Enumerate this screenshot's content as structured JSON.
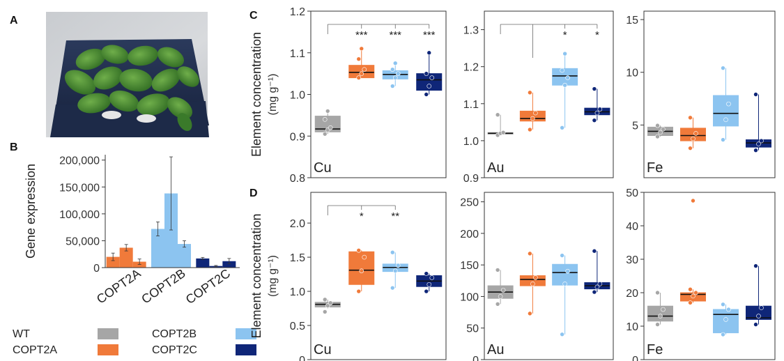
{
  "panel_labels": {
    "A": "A",
    "B": "B",
    "C": "C",
    "D": "D"
  },
  "colors": {
    "WT": "#a6a6a6",
    "COPT2A": "#f07a3a",
    "COPT2B": "#8cc4f0",
    "COPT2C": "#0f2678"
  },
  "legend": {
    "items": [
      {
        "label": "WT",
        "color": "#a6a6a6"
      },
      {
        "label": "COPT2A",
        "color": "#f07a3a"
      },
      {
        "label": "COPT2B",
        "color": "#8cc4f0"
      },
      {
        "label": "COPT2C",
        "color": "#0f2678"
      }
    ]
  },
  "chart_data": [
    {
      "id": "B",
      "type": "bar",
      "ylabel": "Gene expression",
      "ylim": [
        0,
        210000
      ],
      "yticks": [
        0,
        50000,
        100000,
        150000,
        200000
      ],
      "ytick_labels": [
        "0",
        "50,000",
        "100,000",
        "150,000",
        "200,000"
      ],
      "categories": [
        "COPT2A",
        "COPT2B",
        "COPT2C"
      ],
      "groups": [
        {
          "category": "COPT2A",
          "color": "#f07a3a",
          "values": [
            20000,
            37000,
            11000
          ],
          "errors": [
            7000,
            6000,
            5000
          ]
        },
        {
          "category": "COPT2B",
          "color": "#8cc4f0",
          "values": [
            72000,
            138000,
            44000
          ],
          "errors": [
            13000,
            68000,
            6000
          ]
        },
        {
          "category": "COPT2C",
          "color": "#0f2678",
          "values": [
            17000,
            3000,
            12000
          ],
          "errors": [
            2000,
            1000,
            5000
          ]
        }
      ]
    },
    {
      "id": "C-Cu",
      "type": "box",
      "element": "Cu",
      "ylabel": "Element concentration",
      "yunit": "(mg g⁻¹)",
      "ylim": [
        0.8,
        1.2
      ],
      "yticks": [
        0.8,
        0.9,
        1.0,
        1.1,
        1.2
      ],
      "ytick_labels": [
        "0.8",
        "0.9",
        "1.0",
        "1.1",
        "1.2"
      ],
      "significance": [
        "",
        "***",
        "***",
        "***"
      ],
      "bracket": true,
      "boxes": [
        {
          "genotype": "WT",
          "q1": 0.91,
          "median": 0.917,
          "q3": 0.948,
          "whislo": 0.905,
          "whishi": 0.96,
          "points": [
            0.905,
            0.915,
            0.92,
            0.94,
            0.96
          ]
        },
        {
          "genotype": "COPT2A",
          "q1": 1.04,
          "median": 1.053,
          "q3": 1.07,
          "whislo": 1.04,
          "whishi": 1.11,
          "points": [
            1.04,
            1.05,
            1.06,
            1.085,
            1.11
          ]
        },
        {
          "genotype": "COPT2B",
          "q1": 1.037,
          "median": 1.048,
          "q3": 1.057,
          "whislo": 1.02,
          "whishi": 1.075,
          "points": [
            1.02,
            1.04,
            1.05,
            1.06,
            1.075
          ]
        },
        {
          "genotype": "COPT2C",
          "q1": 1.01,
          "median": 1.035,
          "q3": 1.05,
          "whislo": 1.0,
          "whishi": 1.1,
          "points": [
            1.0,
            1.02,
            1.04,
            1.05,
            1.1
          ]
        }
      ]
    },
    {
      "id": "C-Au",
      "type": "box",
      "element": "Au",
      "ylim": [
        0.9,
        1.35
      ],
      "yticks": [
        0.9,
        1.0,
        1.1,
        1.2,
        1.3
      ],
      "ytick_labels": [
        "0.9",
        "1.0",
        "1.1",
        "1.2",
        "1.3"
      ],
      "significance": [
        "",
        "",
        "*",
        "*"
      ],
      "bracket": true,
      "boxes": [
        {
          "genotype": "WT",
          "q1": 1.018,
          "median": 1.02,
          "q3": 1.022,
          "whislo": 1.015,
          "whishi": 1.07,
          "points": [
            1.015,
            1.02,
            1.022,
            1.07
          ]
        },
        {
          "genotype": "COPT2A",
          "q1": 1.053,
          "median": 1.06,
          "q3": 1.08,
          "whislo": 1.03,
          "whishi": 1.13,
          "points": [
            1.03,
            1.06,
            1.075,
            1.13
          ]
        },
        {
          "genotype": "COPT2B",
          "q1": 1.15,
          "median": 1.175,
          "q3": 1.195,
          "whislo": 1.035,
          "whishi": 1.235,
          "points": [
            1.035,
            1.15,
            1.17,
            1.19,
            1.235
          ]
        },
        {
          "genotype": "COPT2C",
          "q1": 1.07,
          "median": 1.078,
          "q3": 1.088,
          "whislo": 1.055,
          "whishi": 1.14,
          "points": [
            1.055,
            1.075,
            1.085,
            1.14
          ]
        }
      ]
    },
    {
      "id": "C-Fe",
      "type": "box",
      "element": "Fe",
      "ylim": [
        0,
        15.8
      ],
      "yticks": [
        5,
        10,
        15
      ],
      "ytick_labels": [
        "5",
        "10",
        "15"
      ],
      "significance": [
        "",
        "",
        "",
        ""
      ],
      "bracket": false,
      "boxes": [
        {
          "genotype": "WT",
          "q1": 4.0,
          "median": 4.4,
          "q3": 4.8,
          "whislo": 3.9,
          "whishi": 4.95,
          "points": [
            3.9,
            4.3,
            4.6,
            4.95
          ]
        },
        {
          "genotype": "COPT2A",
          "q1": 3.5,
          "median": 4.0,
          "q3": 4.7,
          "whislo": 2.8,
          "whishi": 5.7,
          "points": [
            2.8,
            3.7,
            4.2,
            5.7
          ]
        },
        {
          "genotype": "COPT2B",
          "q1": 4.9,
          "median": 6.1,
          "q3": 7.8,
          "whislo": 3.6,
          "whishi": 10.4,
          "points": [
            3.6,
            5.5,
            7.0,
            10.4
          ]
        },
        {
          "genotype": "COPT2C",
          "q1": 2.9,
          "median": 3.3,
          "q3": 3.6,
          "whislo": 2.6,
          "whishi": 7.9,
          "points": [
            2.6,
            3.2,
            3.5,
            7.9
          ]
        }
      ]
    },
    {
      "id": "D-Cu",
      "type": "box",
      "element": "Cu",
      "ylabel": "Element concentration",
      "yunit": "(mg g⁻¹)",
      "ylim": [
        0,
        2.45
      ],
      "yticks": [
        0,
        0.5,
        1.0,
        1.5,
        2.0
      ],
      "ytick_labels": [
        "0",
        "0.5",
        "1.0",
        "1.5",
        "2.0"
      ],
      "significance": [
        "",
        "*",
        "**",
        ""
      ],
      "bracket": true,
      "boxes": [
        {
          "genotype": "WT",
          "q1": 0.77,
          "median": 0.81,
          "q3": 0.84,
          "whislo": 0.75,
          "whishi": 0.88,
          "points": [
            0.7,
            0.79,
            0.83,
            0.88
          ]
        },
        {
          "genotype": "COPT2A",
          "q1": 1.1,
          "median": 1.31,
          "q3": 1.58,
          "whislo": 1.0,
          "whishi": 1.6,
          "points": [
            1.0,
            1.3,
            1.5,
            1.6
          ]
        },
        {
          "genotype": "COPT2B",
          "q1": 1.29,
          "median": 1.35,
          "q3": 1.4,
          "whislo": 1.05,
          "whishi": 1.57,
          "points": [
            1.05,
            1.3,
            1.38,
            1.57
          ]
        },
        {
          "genotype": "COPT2C",
          "q1": 1.07,
          "median": 1.15,
          "q3": 1.23,
          "whislo": 1.0,
          "whishi": 1.26,
          "points": [
            1.0,
            1.1,
            1.2,
            1.26
          ]
        }
      ]
    },
    {
      "id": "D-Au",
      "type": "box",
      "element": "Au",
      "ylim": [
        0,
        265
      ],
      "yticks": [
        0,
        50,
        100,
        150,
        200,
        250
      ],
      "ytick_labels": [
        "0",
        "50",
        "100",
        "150",
        "200",
        "250"
      ],
      "significance": [
        "",
        "",
        "",
        ""
      ],
      "bracket": false,
      "boxes": [
        {
          "genotype": "WT",
          "q1": 97,
          "median": 107,
          "q3": 117,
          "whislo": 88,
          "whishi": 142,
          "points": [
            88,
            100,
            110,
            142
          ]
        },
        {
          "genotype": "COPT2A",
          "q1": 117,
          "median": 127,
          "q3": 133,
          "whislo": 73,
          "whishi": 168,
          "points": [
            73,
            120,
            130,
            168
          ]
        },
        {
          "genotype": "COPT2B",
          "q1": 118,
          "median": 138,
          "q3": 151,
          "whislo": 40,
          "whishi": 165,
          "points": [
            40,
            120,
            140,
            165
          ]
        },
        {
          "genotype": "COPT2C",
          "q1": 112,
          "median": 117,
          "q3": 122,
          "whislo": 107,
          "whishi": 172,
          "points": [
            107,
            115,
            120,
            172
          ]
        }
      ]
    },
    {
      "id": "D-Fe",
      "type": "box",
      "element": "Fe",
      "ylim": [
        0,
        50
      ],
      "yticks": [
        0,
        10,
        20,
        30,
        40,
        50
      ],
      "ytick_labels": [
        "0",
        "10",
        "20",
        "30",
        "40",
        "50"
      ],
      "significance": [
        "",
        "",
        "",
        ""
      ],
      "bracket": false,
      "boxes": [
        {
          "genotype": "WT",
          "q1": 11.5,
          "median": 13,
          "q3": 16,
          "whislo": 10.5,
          "whishi": 20,
          "points": [
            10.5,
            13,
            15,
            20
          ]
        },
        {
          "genotype": "COPT2A",
          "q1": 17.5,
          "median": 19.5,
          "q3": 20,
          "whislo": 17,
          "whishi": 21,
          "points": [
            17,
            19,
            20,
            21,
            47.5
          ]
        },
        {
          "genotype": "COPT2B",
          "q1": 8,
          "median": 13.5,
          "q3": 15,
          "whislo": 7.5,
          "whishi": 16.5,
          "points": [
            7.5,
            12,
            15,
            16.5
          ]
        },
        {
          "genotype": "COPT2C",
          "q1": 12,
          "median": 12.5,
          "q3": 16,
          "whislo": 10.5,
          "whishi": 28,
          "points": [
            10.5,
            13,
            15.5,
            28
          ]
        }
      ]
    }
  ]
}
